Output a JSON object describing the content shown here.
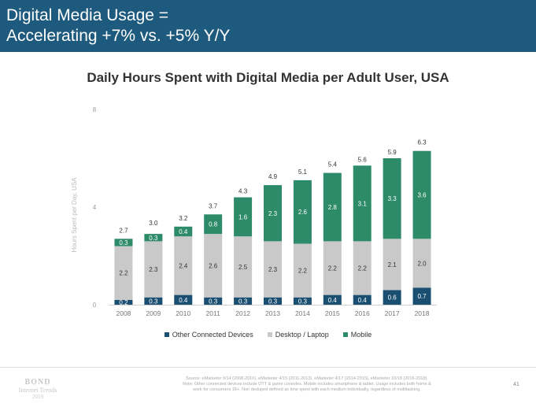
{
  "header": {
    "title_line1": "Digital Media Usage =",
    "title_line2": "Accelerating +7% vs. +5% Y/Y"
  },
  "chart_data": {
    "type": "bar",
    "stacked": true,
    "title": "Daily Hours Spent with Digital Media per Adult User, USA",
    "ylabel": "Hours Spent per Day, USA",
    "xlabel": "",
    "ylim": [
      0,
      8
    ],
    "yticks": [
      0,
      4,
      8
    ],
    "categories": [
      "2008",
      "2009",
      "2010",
      "2011",
      "2012",
      "2013",
      "2014",
      "2015",
      "2016",
      "2017",
      "2018"
    ],
    "series": [
      {
        "name": "Other Connected Devices",
        "color": "#1b4f72",
        "values": [
          0.2,
          0.3,
          0.4,
          0.3,
          0.3,
          0.3,
          0.3,
          0.4,
          0.4,
          0.6,
          0.7
        ]
      },
      {
        "name": "Desktop / Laptop",
        "color": "#c9c9c9",
        "values": [
          2.2,
          2.3,
          2.4,
          2.6,
          2.5,
          2.3,
          2.2,
          2.2,
          2.2,
          2.1,
          2.0
        ]
      },
      {
        "name": "Mobile",
        "color": "#2e8b6a",
        "values": [
          0.3,
          0.3,
          0.4,
          0.8,
          1.6,
          2.3,
          2.6,
          2.8,
          3.1,
          3.3,
          3.6
        ]
      }
    ],
    "totals": [
      2.7,
      3.0,
      3.2,
      3.7,
      4.3,
      4.9,
      5.1,
      5.4,
      5.6,
      5.9,
      6.3
    ],
    "grid": false,
    "legend_position": "bottom"
  },
  "footer": {
    "source_line1": "Source: eMarketer 9/14 (2008-2010), eMarketer 4/15 (2011-2013), eMarketer 4/17 (2014-2015), eMarketer 10/18 (2016-2018).",
    "source_line2": "Note: Other connected devices include OTT & game consoles. Mobile includes smartphone & tablet. Usage includes both home &",
    "source_line3": "work for consumers 18+. Non deduped defined as time spent with each medium individually, regardless of multitasking.",
    "page_number": "41",
    "logo": "BOND",
    "logo_sub": "Internet Trends",
    "logo_year": "2019"
  }
}
